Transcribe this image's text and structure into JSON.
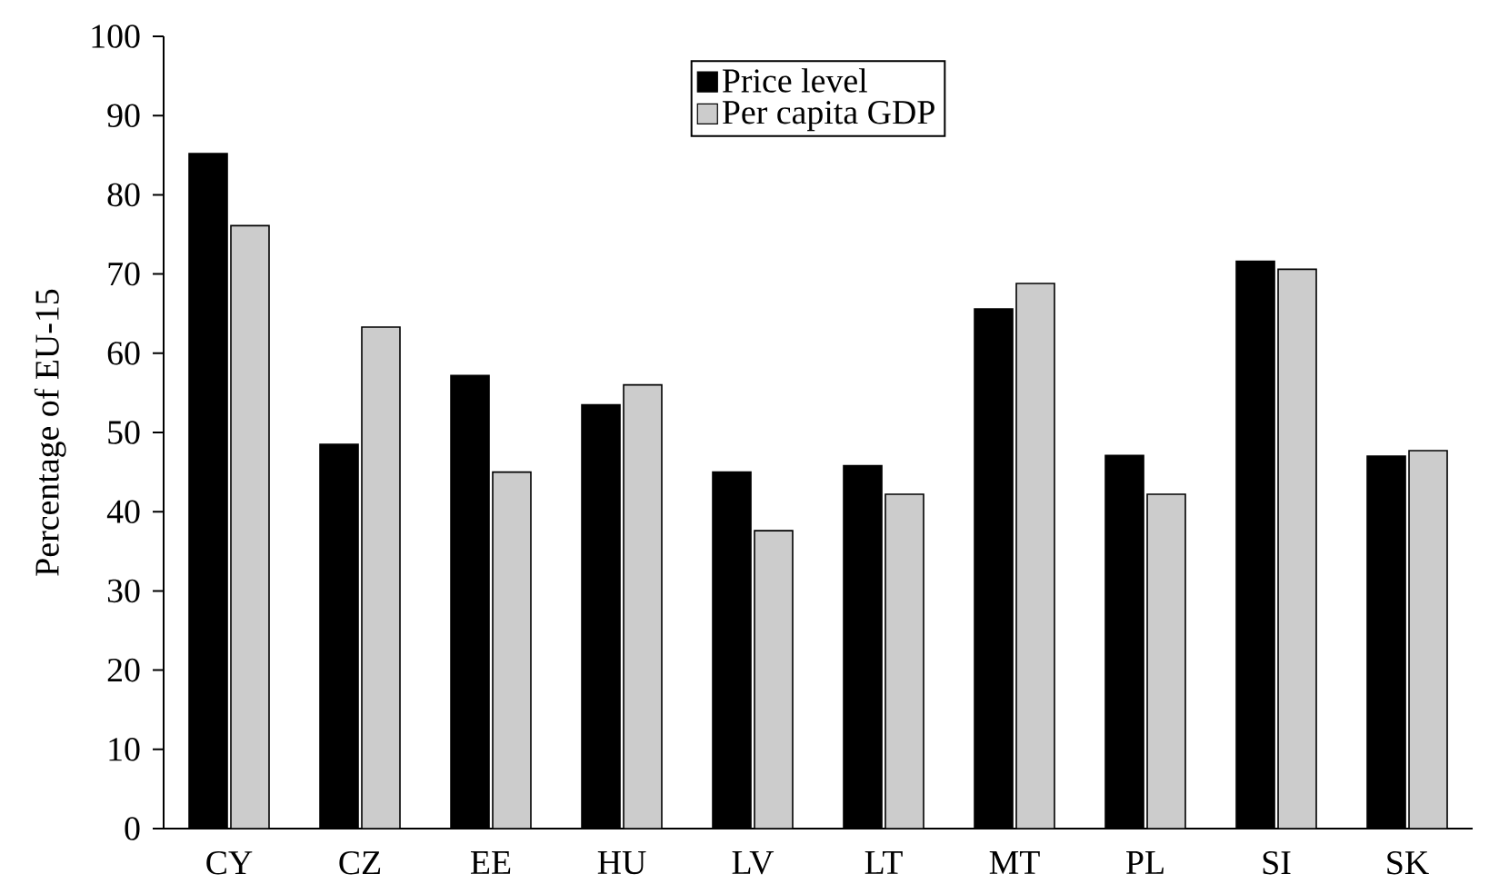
{
  "chart_data": {
    "type": "bar",
    "ylabel": "Percentage of EU-15",
    "categories": [
      "CY",
      "CZ",
      "EE",
      "HU",
      "LV",
      "LT",
      "MT",
      "PL",
      "SI",
      "SK"
    ],
    "series": [
      {
        "name": "Price level",
        "color": "#000000",
        "values": [
          85.2,
          48.5,
          57.2,
          53.5,
          45.0,
          45.8,
          65.6,
          47.1,
          71.6,
          47.0
        ]
      },
      {
        "name": "Per capita GDP",
        "color": "#cccccc",
        "values": [
          76.1,
          63.3,
          45.0,
          56.0,
          37.6,
          42.2,
          68.8,
          42.2,
          70.6,
          47.7
        ]
      }
    ],
    "ylim": [
      0,
      100
    ],
    "yticks": [
      0,
      10,
      20,
      30,
      40,
      50,
      60,
      70,
      80,
      90,
      100
    ],
    "legend": "top",
    "grid": false
  }
}
